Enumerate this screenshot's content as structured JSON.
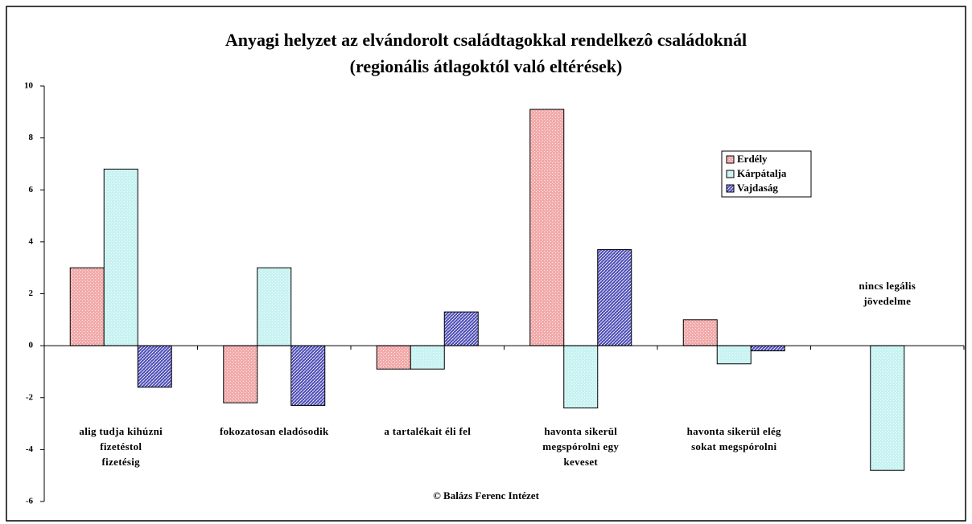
{
  "chart_data": {
    "type": "bar",
    "title": "Anyagi helyzet az elvándorolt családtagokkal rendelkezô családoknál",
    "subtitle": "(regionális átlagoktól való eltérések)",
    "categories": [
      "alig tudja kihúzni\nfizetéstol\nfizetésig",
      "fokozatosan eladósodik",
      "a tartalékait éli fel",
      "havonta sikerül\nmegspórolni egy\nkeveset",
      "havonta sikerül elég\nsokat megspórolni",
      "nincs legális\njövedelme"
    ],
    "series": [
      {
        "name": "Erdély",
        "color": "#f2a8a8",
        "values": [
          3.0,
          -2.2,
          -0.9,
          9.1,
          1.0,
          null
        ]
      },
      {
        "name": "Kárpátalja",
        "color": "#c6f2f2",
        "values": [
          6.8,
          3.0,
          -0.9,
          -2.4,
          -0.7,
          -4.8
        ]
      },
      {
        "name": "Vajdaság",
        "color": "#4f4fb8",
        "values": [
          -1.6,
          -2.3,
          1.3,
          3.7,
          -0.2,
          null
        ]
      }
    ],
    "ylim": [
      -6,
      10
    ],
    "yticks": [
      -6,
      -4,
      -2,
      0,
      2,
      4,
      6,
      8,
      10
    ],
    "legend": "right",
    "source": "© Balázs Ferenc Intézet"
  }
}
